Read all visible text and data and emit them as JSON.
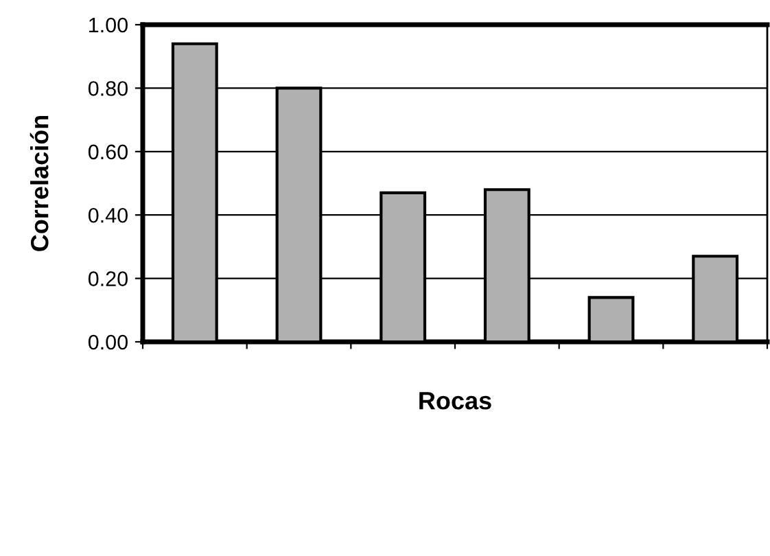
{
  "chart_data": {
    "type": "bar",
    "xlabel": "Rocas",
    "ylabel": "Correlación",
    "categories": [
      null,
      null,
      null,
      null,
      null,
      null
    ],
    "values": [
      0.94,
      0.8,
      0.47,
      0.48,
      0.14,
      0.27
    ],
    "color": "#b0b0b0",
    "ylim": [
      0,
      1.0
    ],
    "yticks": [
      {
        "value": 0,
        "label": "0.00"
      },
      {
        "value": 0.2,
        "label": "0.20"
      },
      {
        "value": 0.4,
        "label": "0.40"
      },
      {
        "value": 0.6,
        "label": "0.60"
      },
      {
        "value": 0.8,
        "label": "0.80"
      },
      {
        "value": 1.0,
        "label": "1.00"
      }
    ],
    "grid": "y"
  }
}
